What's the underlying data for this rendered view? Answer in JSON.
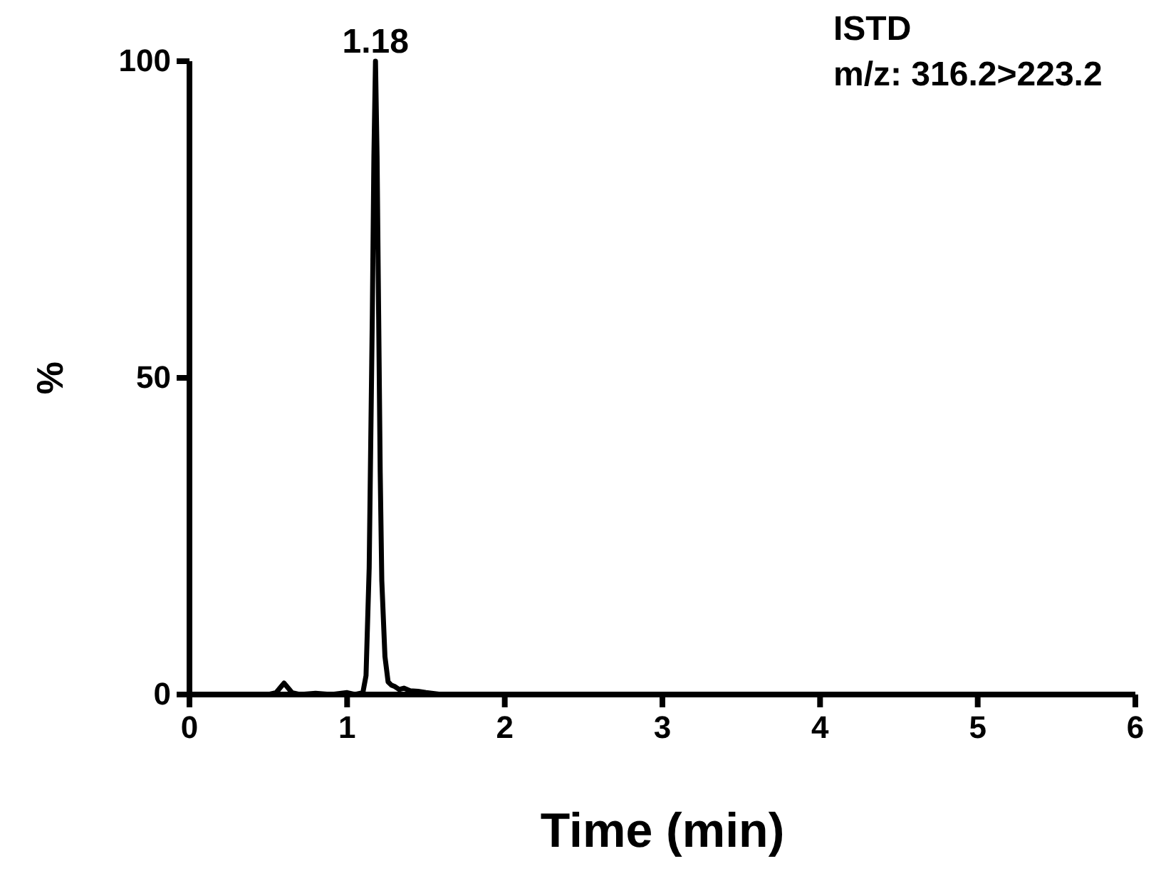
{
  "chart_data": {
    "type": "line",
    "xlabel": "Time (min)",
    "ylabel": "%",
    "xlim": [
      0,
      6
    ],
    "ylim": [
      0,
      100
    ],
    "xticks": [
      0,
      1,
      2,
      3,
      4,
      5,
      6
    ],
    "yticks": [
      0,
      50,
      100
    ],
    "grid": false,
    "marker": "none",
    "line_style": "solid",
    "annotations": [
      {
        "text": "1.18",
        "x": 1.18,
        "y": 100
      },
      "ISTD",
      "m/z: 316.2>223.2"
    ],
    "series": [
      {
        "color": "#000000",
        "x": [
          0,
          0.5,
          0.55,
          0.58,
          0.6,
          0.62,
          0.65,
          0.7,
          0.8,
          0.9,
          1.0,
          1.05,
          1.1,
          1.12,
          1.14,
          1.16,
          1.17,
          1.18,
          1.19,
          1.2,
          1.21,
          1.22,
          1.24,
          1.26,
          1.28,
          1.3,
          1.33,
          1.36,
          1.4,
          1.45,
          1.5,
          1.6,
          2,
          3,
          4,
          5,
          6
        ],
        "values": [
          0,
          0,
          0.3,
          1.2,
          1.8,
          1.2,
          0.3,
          0,
          0.2,
          0,
          0.3,
          0,
          0.3,
          3,
          20,
          60,
          85,
          100,
          85,
          60,
          35,
          18,
          6,
          2,
          1.5,
          1.3,
          0.8,
          1,
          0.6,
          0.5,
          0.3,
          0,
          0,
          0,
          0,
          0,
          0
        ]
      }
    ]
  }
}
